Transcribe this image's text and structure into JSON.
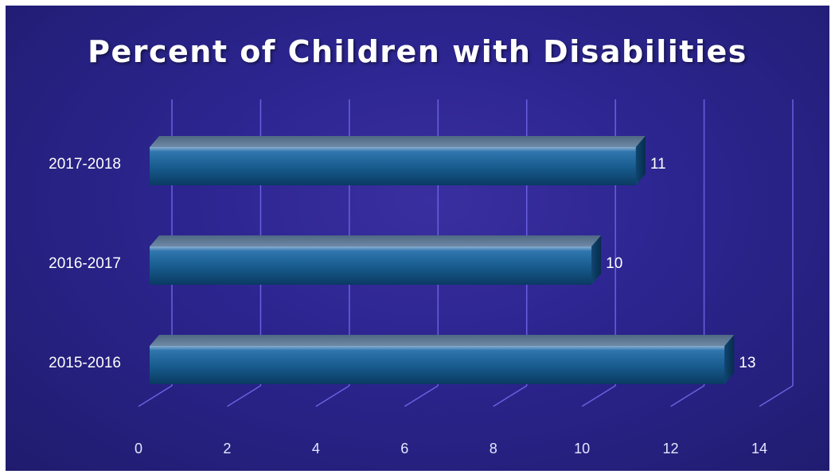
{
  "chart_data": {
    "type": "bar",
    "orientation": "horizontal",
    "title": "Percent of Children with Disabilities",
    "categories": [
      "2015-2016",
      "2016-2017",
      "2017-2018"
    ],
    "values": [
      13,
      10,
      11
    ],
    "data_labels": [
      "13",
      "10",
      "11"
    ],
    "xlim": [
      0,
      14
    ],
    "x_ticks": [
      "0",
      "2",
      "4",
      "6",
      "8",
      "10",
      "12",
      "14"
    ],
    "grid": true,
    "legend": "none",
    "style": "3d-cylinder-bars",
    "colors": {
      "background": "#2c2590",
      "bar": "#1f5f8f",
      "bar_top": "#5e7b97",
      "gridline": "#6a60e0",
      "text": "#ffffff",
      "axis_text": "#e6e6ff"
    }
  }
}
